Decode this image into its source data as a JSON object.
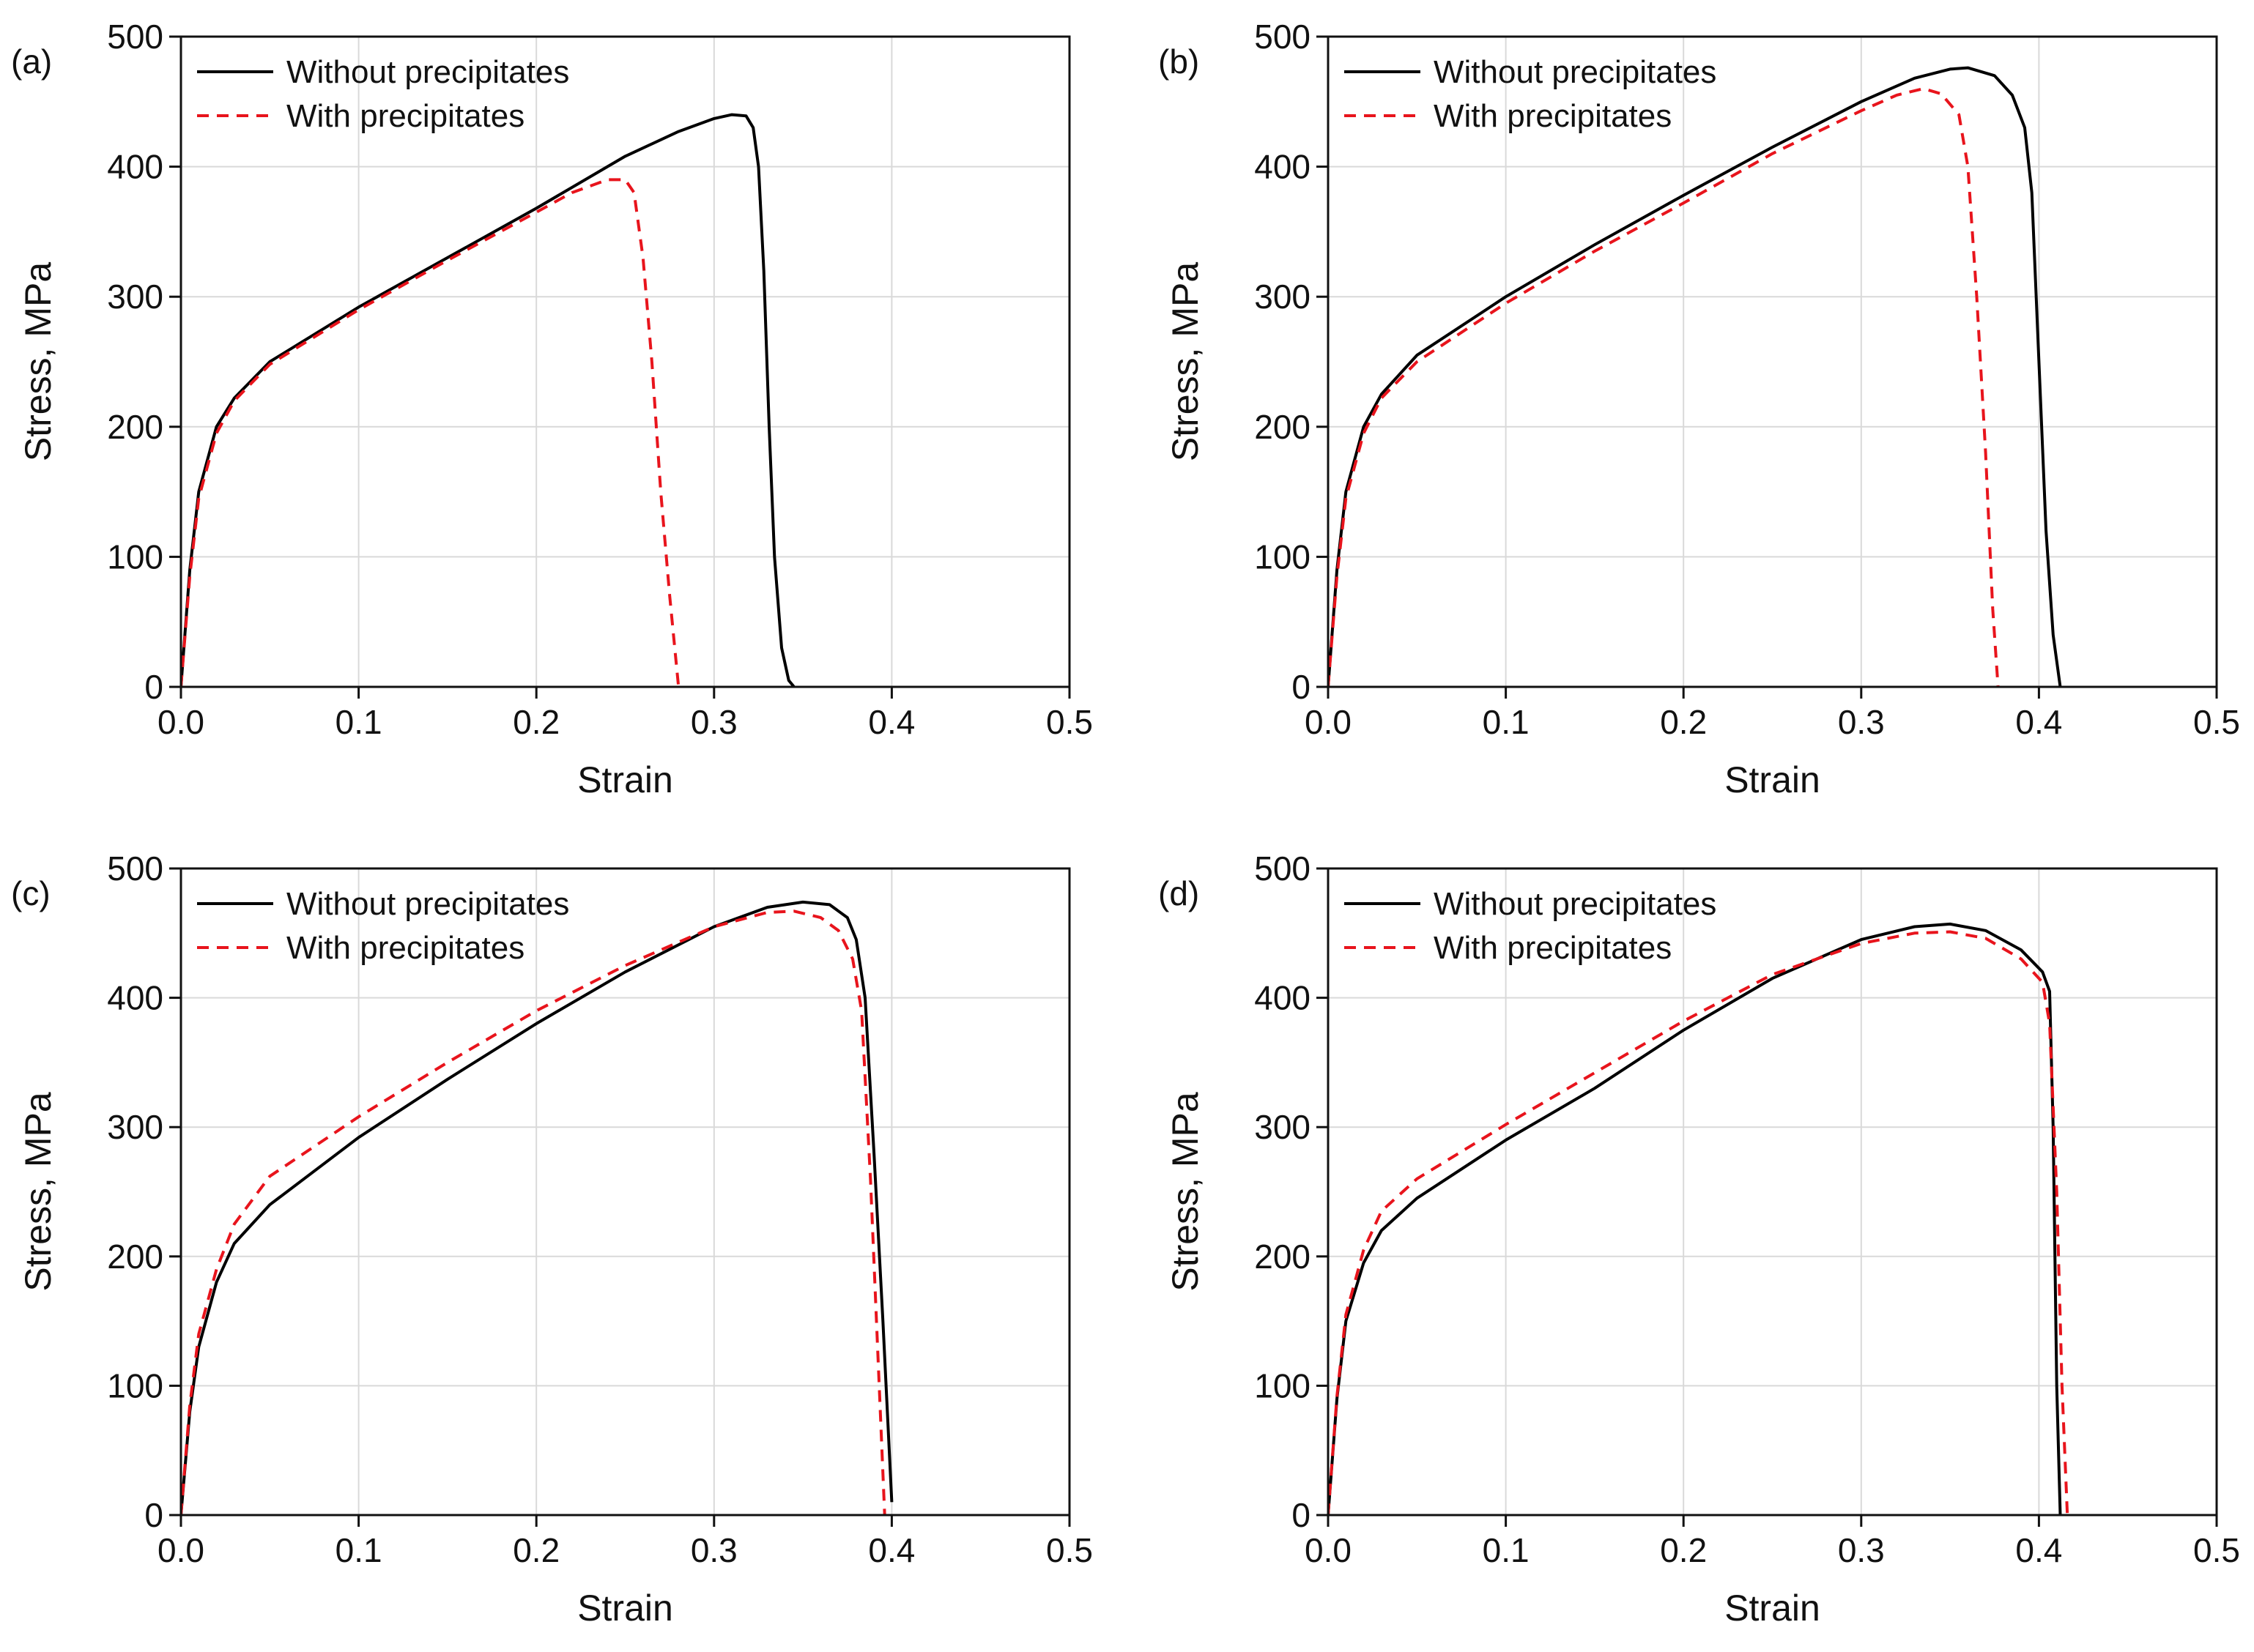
{
  "chart_data": [
    {
      "type": "line",
      "panel_label": "(a)",
      "xlabel": "Strain",
      "ylabel": "Stress, MPa",
      "xlim": [
        0,
        0.5
      ],
      "ylim": [
        0,
        500
      ],
      "x_ticks": [
        "0.0",
        "0.1",
        "0.2",
        "0.3",
        "0.4",
        "0.5"
      ],
      "y_ticks": [
        "0",
        "100",
        "200",
        "300",
        "400",
        "500"
      ],
      "grid": true,
      "legend_position": "top-left",
      "series": [
        {
          "name": "Without precipitates",
          "color": "#000000",
          "dash": "solid",
          "points": [
            [
              0,
              0
            ],
            [
              0.005,
              90
            ],
            [
              0.01,
              150
            ],
            [
              0.02,
              200
            ],
            [
              0.03,
              222
            ],
            [
              0.05,
              250
            ],
            [
              0.1,
              292
            ],
            [
              0.15,
              330
            ],
            [
              0.2,
              368
            ],
            [
              0.25,
              408
            ],
            [
              0.28,
              427
            ],
            [
              0.3,
              437
            ],
            [
              0.31,
              440
            ],
            [
              0.318,
              439
            ],
            [
              0.322,
              430
            ],
            [
              0.325,
              400
            ],
            [
              0.328,
              320
            ],
            [
              0.331,
              200
            ],
            [
              0.334,
              100
            ],
            [
              0.338,
              30
            ],
            [
              0.342,
              5
            ],
            [
              0.345,
              0
            ]
          ]
        },
        {
          "name": "With precipitates",
          "color": "#e8141c",
          "dash": "dashed",
          "points": [
            [
              0,
              0
            ],
            [
              0.005,
              85
            ],
            [
              0.01,
              145
            ],
            [
              0.02,
              195
            ],
            [
              0.03,
              220
            ],
            [
              0.05,
              248
            ],
            [
              0.1,
              290
            ],
            [
              0.15,
              328
            ],
            [
              0.2,
              365
            ],
            [
              0.22,
              380
            ],
            [
              0.24,
              390
            ],
            [
              0.25,
              390
            ],
            [
              0.255,
              380
            ],
            [
              0.26,
              330
            ],
            [
              0.265,
              250
            ],
            [
              0.27,
              150
            ],
            [
              0.275,
              70
            ],
            [
              0.28,
              0
            ]
          ]
        }
      ]
    },
    {
      "type": "line",
      "panel_label": "(b)",
      "xlabel": "Strain",
      "ylabel": "Stress, MPa",
      "xlim": [
        0,
        0.5
      ],
      "ylim": [
        0,
        500
      ],
      "x_ticks": [
        "0.0",
        "0.1",
        "0.2",
        "0.3",
        "0.4",
        "0.5"
      ],
      "y_ticks": [
        "0",
        "100",
        "200",
        "300",
        "400",
        "500"
      ],
      "grid": true,
      "legend_position": "top-left",
      "series": [
        {
          "name": "Without precipitates",
          "color": "#000000",
          "dash": "solid",
          "points": [
            [
              0,
              0
            ],
            [
              0.005,
              90
            ],
            [
              0.01,
              150
            ],
            [
              0.02,
              200
            ],
            [
              0.03,
              225
            ],
            [
              0.05,
              255
            ],
            [
              0.1,
              300
            ],
            [
              0.15,
              340
            ],
            [
              0.2,
              378
            ],
            [
              0.25,
              415
            ],
            [
              0.3,
              450
            ],
            [
              0.33,
              468
            ],
            [
              0.35,
              475
            ],
            [
              0.36,
              476
            ],
            [
              0.375,
              470
            ],
            [
              0.385,
              455
            ],
            [
              0.392,
              430
            ],
            [
              0.396,
              380
            ],
            [
              0.4,
              250
            ],
            [
              0.404,
              120
            ],
            [
              0.408,
              40
            ],
            [
              0.412,
              0
            ]
          ]
        },
        {
          "name": "With precipitates",
          "color": "#e8141c",
          "dash": "dashed",
          "points": [
            [
              0,
              0
            ],
            [
              0.005,
              85
            ],
            [
              0.01,
              145
            ],
            [
              0.02,
              195
            ],
            [
              0.03,
              222
            ],
            [
              0.05,
              250
            ],
            [
              0.1,
              295
            ],
            [
              0.15,
              335
            ],
            [
              0.2,
              372
            ],
            [
              0.25,
              410
            ],
            [
              0.3,
              443
            ],
            [
              0.32,
              455
            ],
            [
              0.335,
              460
            ],
            [
              0.345,
              456
            ],
            [
              0.355,
              440
            ],
            [
              0.36,
              400
            ],
            [
              0.365,
              300
            ],
            [
              0.37,
              180
            ],
            [
              0.374,
              60
            ],
            [
              0.377,
              0
            ]
          ]
        }
      ]
    },
    {
      "type": "line",
      "panel_label": "(c)",
      "xlabel": "Strain",
      "ylabel": "Stress, MPa",
      "xlim": [
        0,
        0.5
      ],
      "ylim": [
        0,
        500
      ],
      "x_ticks": [
        "0.0",
        "0.1",
        "0.2",
        "0.3",
        "0.4",
        "0.5"
      ],
      "y_ticks": [
        "0",
        "100",
        "200",
        "300",
        "400",
        "500"
      ],
      "grid": true,
      "legend_position": "top-left",
      "series": [
        {
          "name": "Without precipitates",
          "color": "#000000",
          "dash": "solid",
          "points": [
            [
              0,
              0
            ],
            [
              0.005,
              80
            ],
            [
              0.01,
              130
            ],
            [
              0.02,
              180
            ],
            [
              0.03,
              210
            ],
            [
              0.05,
              240
            ],
            [
              0.1,
              292
            ],
            [
              0.15,
              337
            ],
            [
              0.2,
              380
            ],
            [
              0.25,
              420
            ],
            [
              0.3,
              455
            ],
            [
              0.33,
              470
            ],
            [
              0.35,
              474
            ],
            [
              0.365,
              472
            ],
            [
              0.375,
              462
            ],
            [
              0.38,
              445
            ],
            [
              0.385,
              400
            ],
            [
              0.39,
              280
            ],
            [
              0.395,
              150
            ],
            [
              0.4,
              10
            ]
          ]
        },
        {
          "name": "With precipitates",
          "color": "#e8141c",
          "dash": "dashed",
          "points": [
            [
              0,
              0
            ],
            [
              0.005,
              85
            ],
            [
              0.01,
              140
            ],
            [
              0.02,
              190
            ],
            [
              0.03,
              225
            ],
            [
              0.05,
              262
            ],
            [
              0.1,
              308
            ],
            [
              0.15,
              350
            ],
            [
              0.2,
              390
            ],
            [
              0.25,
              425
            ],
            [
              0.3,
              455
            ],
            [
              0.33,
              466
            ],
            [
              0.345,
              467
            ],
            [
              0.36,
              462
            ],
            [
              0.37,
              452
            ],
            [
              0.378,
              430
            ],
            [
              0.383,
              390
            ],
            [
              0.388,
              260
            ],
            [
              0.392,
              130
            ],
            [
              0.396,
              0
            ]
          ]
        }
      ]
    },
    {
      "type": "line",
      "panel_label": "(d)",
      "xlabel": "Strain",
      "ylabel": "Stress, MPa",
      "xlim": [
        0,
        0.5
      ],
      "ylim": [
        0,
        500
      ],
      "x_ticks": [
        "0.0",
        "0.1",
        "0.2",
        "0.3",
        "0.4",
        "0.5"
      ],
      "y_ticks": [
        "0",
        "100",
        "200",
        "300",
        "400",
        "500"
      ],
      "grid": true,
      "legend_position": "top-left",
      "series": [
        {
          "name": "Without precipitates",
          "color": "#000000",
          "dash": "solid",
          "points": [
            [
              0,
              0
            ],
            [
              0.005,
              90
            ],
            [
              0.01,
              150
            ],
            [
              0.02,
              195
            ],
            [
              0.03,
              220
            ],
            [
              0.05,
              245
            ],
            [
              0.1,
              290
            ],
            [
              0.15,
              330
            ],
            [
              0.2,
              375
            ],
            [
              0.25,
              415
            ],
            [
              0.3,
              445
            ],
            [
              0.33,
              455
            ],
            [
              0.35,
              457
            ],
            [
              0.37,
              452
            ],
            [
              0.39,
              437
            ],
            [
              0.402,
              420
            ],
            [
              0.406,
              405
            ],
            [
              0.408,
              300
            ],
            [
              0.41,
              100
            ],
            [
              0.412,
              0
            ]
          ]
        },
        {
          "name": "With precipitates",
          "color": "#e8141c",
          "dash": "dashed",
          "points": [
            [
              0,
              0
            ],
            [
              0.005,
              92
            ],
            [
              0.01,
              155
            ],
            [
              0.02,
              205
            ],
            [
              0.03,
              235
            ],
            [
              0.05,
              260
            ],
            [
              0.1,
              302
            ],
            [
              0.15,
              342
            ],
            [
              0.2,
              382
            ],
            [
              0.25,
              418
            ],
            [
              0.3,
              442
            ],
            [
              0.33,
              450
            ],
            [
              0.35,
              451
            ],
            [
              0.37,
              446
            ],
            [
              0.39,
              430
            ],
            [
              0.402,
              412
            ],
            [
              0.406,
              380
            ],
            [
              0.41,
              250
            ],
            [
              0.413,
              100
            ],
            [
              0.416,
              0
            ]
          ]
        }
      ]
    }
  ]
}
